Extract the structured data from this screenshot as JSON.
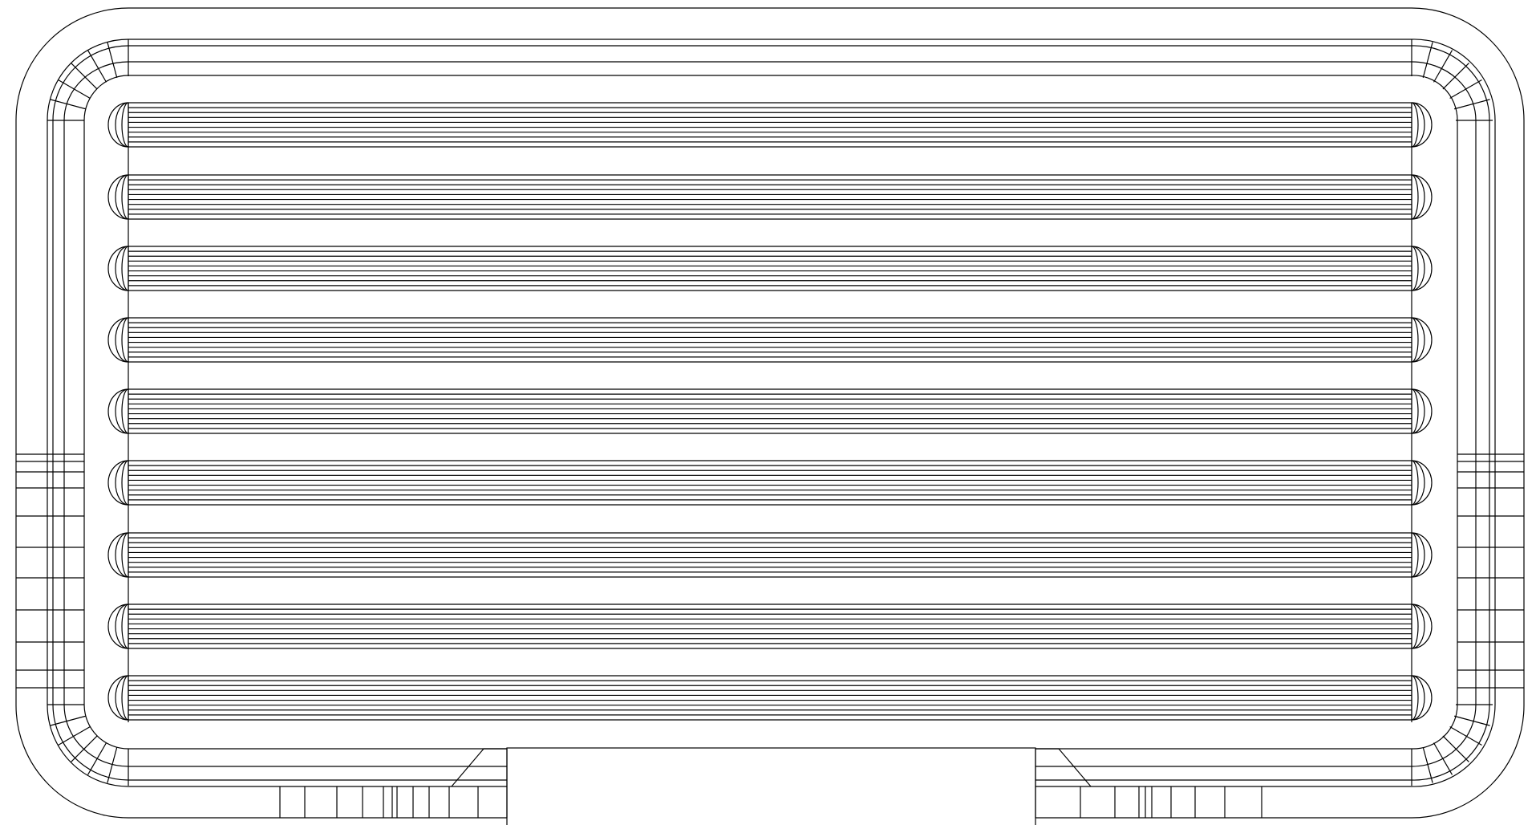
{
  "drawing": {
    "type": "wireframe",
    "slot_count": 9,
    "colors": {
      "stroke": "#000000",
      "background": "#ffffff"
    }
  }
}
